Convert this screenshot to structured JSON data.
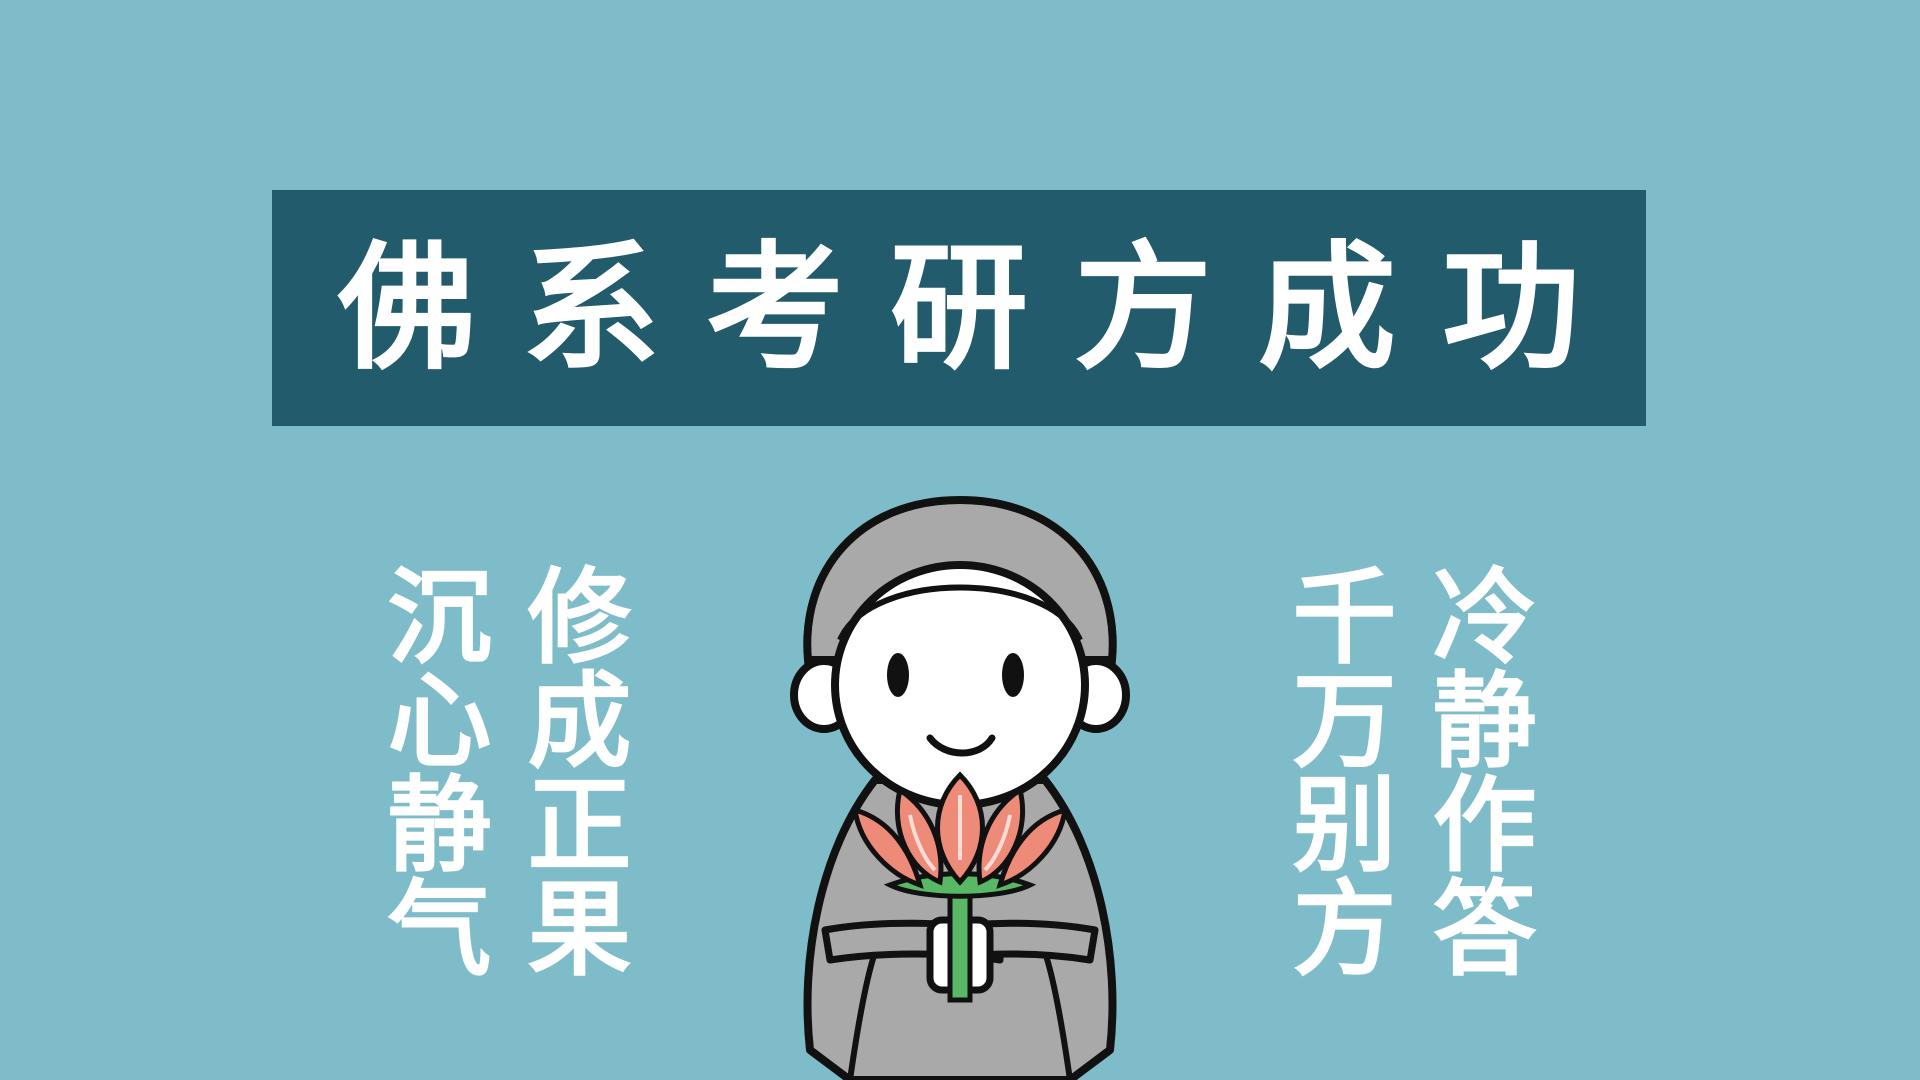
{
  "title": "佛系考研方成功",
  "left_columns": [
    "沉心静气",
    "修成正果"
  ],
  "right_columns": [
    "千万别方",
    "冷静作答"
  ],
  "colors": {
    "background": "#7ebcc9",
    "banner": "#225b6b",
    "text": "#ffffff",
    "robe": "#a9a9a9",
    "lotus_petal": "#ee8a78",
    "lotus_stem": "#59b866"
  },
  "illustration": {
    "subject": "cartoon-monk-holding-lotus"
  }
}
